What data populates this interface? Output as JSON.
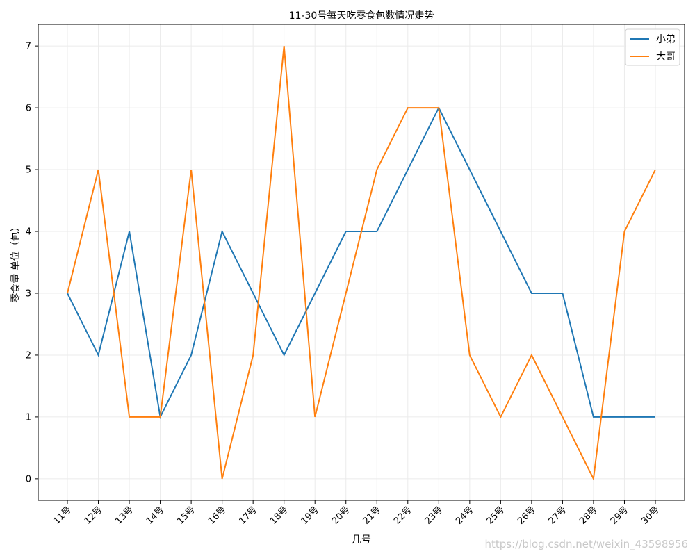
{
  "chart_data": {
    "type": "line",
    "title": "11-30号每天吃零食包数情况走势",
    "xlabel": "几号",
    "ylabel": "零食量 单位（包）",
    "categories": [
      "11号",
      "12号",
      "13号",
      "14号",
      "15号",
      "16号",
      "17号",
      "18号",
      "19号",
      "20号",
      "21号",
      "22号",
      "23号",
      "24号",
      "25号",
      "26号",
      "27号",
      "28号",
      "29号",
      "30号"
    ],
    "series": [
      {
        "name": "小弟",
        "color": "#1f77b4",
        "values": [
          3,
          2,
          4,
          1,
          2,
          4,
          3,
          2,
          3,
          4,
          4,
          5,
          6,
          5,
          4,
          3,
          3,
          1,
          1,
          1
        ]
      },
      {
        "name": "大哥",
        "color": "#ff7f0e",
        "values": [
          3,
          5,
          1,
          1,
          5,
          0,
          2,
          7,
          1,
          3,
          5,
          6,
          6,
          2,
          1,
          2,
          1,
          0,
          4,
          5
        ]
      }
    ],
    "yticks": [
      0,
      1,
      2,
      3,
      4,
      5,
      6,
      7
    ],
    "ylim": [
      -0.35,
      7.35
    ],
    "grid": true,
    "legend_position": "top-right"
  },
  "watermark": "https://blog.csdn.net/weixin_43598956"
}
